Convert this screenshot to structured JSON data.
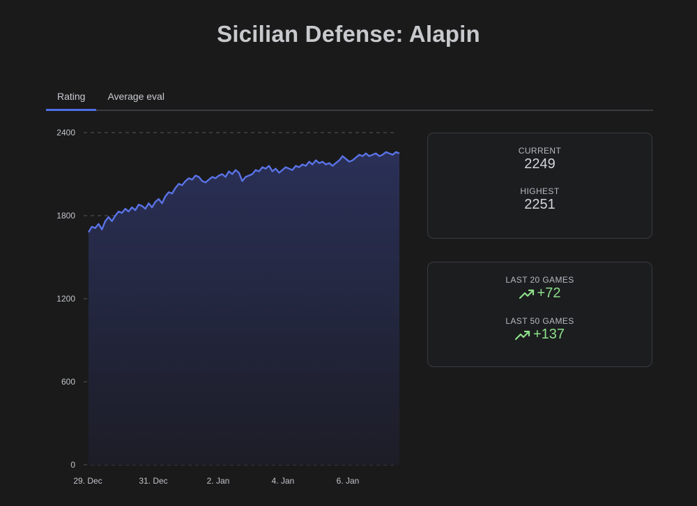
{
  "title": "Sicilian Defense: Alapin",
  "tabs": [
    {
      "label": "Rating",
      "active": true
    },
    {
      "label": "Average eval",
      "active": false
    }
  ],
  "stats": {
    "current_label": "CURRENT",
    "current_value": "2249",
    "highest_label": "HIGHEST",
    "highest_value": "2251"
  },
  "trends": {
    "last20_label": "LAST 20 GAMES",
    "last20_value": "+72",
    "last50_label": "LAST 50 GAMES",
    "last50_value": "+137",
    "icon": "trending-up-icon",
    "color": "#8ee08a"
  },
  "colors": {
    "accent": "#4d6fe8",
    "line": "#5a73e6",
    "positive": "#8ee08a",
    "background": "#1a1a1b"
  },
  "chart_data": {
    "type": "area",
    "x_ticks": [
      "29. Dec",
      "31. Dec",
      "2. Jan",
      "4. Jan",
      "6. Jan"
    ],
    "y_ticks": [
      0,
      600,
      1200,
      1800,
      2400
    ],
    "ylim": [
      0,
      2400
    ],
    "grid": true,
    "values": [
      1680,
      1720,
      1710,
      1740,
      1700,
      1760,
      1790,
      1760,
      1800,
      1830,
      1820,
      1850,
      1830,
      1860,
      1840,
      1880,
      1870,
      1850,
      1890,
      1860,
      1900,
      1920,
      1890,
      1940,
      1970,
      1960,
      2000,
      2030,
      2020,
      2050,
      2070,
      2060,
      2090,
      2080,
      2050,
      2040,
      2060,
      2080,
      2070,
      2090,
      2100,
      2080,
      2120,
      2100,
      2130,
      2110,
      2050,
      2080,
      2090,
      2100,
      2130,
      2120,
      2150,
      2140,
      2160,
      2120,
      2140,
      2110,
      2130,
      2150,
      2140,
      2130,
      2160,
      2150,
      2170,
      2160,
      2190,
      2170,
      2200,
      2180,
      2190,
      2170,
      2180,
      2160,
      2180,
      2200,
      2230,
      2210,
      2190,
      2200,
      2220,
      2240,
      2230,
      2250,
      2230,
      2240,
      2250,
      2230,
      2240,
      2260,
      2250,
      2240,
      2260,
      2249
    ]
  }
}
